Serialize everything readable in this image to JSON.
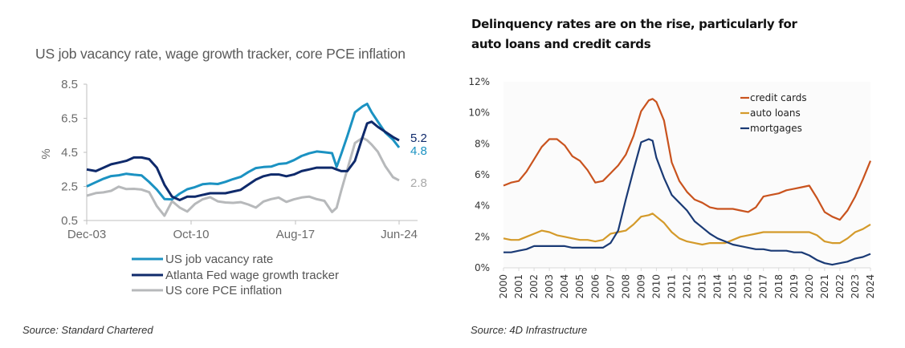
{
  "chart_data": [
    {
      "type": "line",
      "title": "US job vacancy rate, wage growth tracker, core PCE inflation",
      "xlabel": "",
      "ylabel": "%",
      "ylim": [
        0.5,
        8.5
      ],
      "yticks": [
        "8.5",
        "6.5",
        "4.5",
        "2.5",
        "0.5"
      ],
      "xticks": [
        "Dec-03",
        "Oct-10",
        "Aug-17",
        "Jun-24"
      ],
      "x": [
        2003.9,
        2004.5,
        2005.0,
        2005.5,
        2006.0,
        2006.5,
        2007.0,
        2007.5,
        2008.0,
        2008.5,
        2009.0,
        2009.5,
        2010.0,
        2010.5,
        2011.0,
        2011.5,
        2012.0,
        2012.5,
        2013.0,
        2013.5,
        2014.0,
        2014.5,
        2015.0,
        2015.5,
        2016.0,
        2016.5,
        2017.0,
        2017.5,
        2018.0,
        2018.5,
        2019.0,
        2019.5,
        2020.0,
        2020.3,
        2020.6,
        2021.0,
        2021.5,
        2022.0,
        2022.3,
        2022.6,
        2023.0,
        2023.5,
        2024.0,
        2024.4
      ],
      "series": [
        {
          "name": "US job vacancy rate",
          "color": "#1b92c2",
          "end_label": "4.8",
          "values": [
            2.5,
            2.7,
            2.9,
            3.1,
            3.2,
            3.3,
            3.2,
            3.1,
            2.7,
            2.3,
            1.8,
            1.8,
            2.1,
            2.3,
            2.4,
            2.6,
            2.7,
            2.7,
            2.8,
            2.9,
            3.0,
            3.3,
            3.6,
            3.7,
            3.7,
            3.8,
            3.8,
            4.0,
            4.3,
            4.5,
            4.6,
            4.5,
            4.4,
            3.6,
            4.4,
            5.5,
            6.9,
            7.2,
            7.3,
            6.8,
            6.3,
            5.7,
            5.3,
            4.8
          ]
        },
        {
          "name": "Atlanta Fed wage growth tracker",
          "color": "#0f2a6b",
          "end_label": "5.2",
          "values": [
            3.5,
            3.4,
            3.6,
            3.8,
            3.9,
            4.0,
            4.2,
            4.2,
            4.1,
            3.6,
            2.6,
            1.9,
            1.7,
            1.9,
            1.9,
            2.0,
            2.1,
            2.1,
            2.1,
            2.2,
            2.3,
            2.6,
            2.9,
            3.1,
            3.2,
            3.2,
            3.1,
            3.2,
            3.4,
            3.5,
            3.6,
            3.6,
            3.6,
            3.5,
            3.4,
            3.4,
            4.0,
            5.4,
            6.2,
            6.3,
            6.0,
            5.7,
            5.4,
            5.2
          ]
        },
        {
          "name": "US core PCE inflation",
          "color": "#b7b9bb",
          "end_label": "2.8",
          "values": [
            1.9,
            2.1,
            2.2,
            2.3,
            2.5,
            2.3,
            2.3,
            2.3,
            2.2,
            1.4,
            0.8,
            1.6,
            1.2,
            1.0,
            1.5,
            1.8,
            1.9,
            1.6,
            1.5,
            1.5,
            1.6,
            1.5,
            1.3,
            1.6,
            1.7,
            1.8,
            1.6,
            1.8,
            1.9,
            1.9,
            1.7,
            1.6,
            1.0,
            1.3,
            2.3,
            3.5,
            5.0,
            5.3,
            5.2,
            5.0,
            4.6,
            3.7,
            3.0,
            2.8
          ]
        }
      ],
      "legend": "bottom",
      "source": "Source: Standard Chartered"
    },
    {
      "type": "line",
      "title": "Delinquency rates are on the rise, particularly for auto loans and credit cards",
      "xlabel": "",
      "ylabel": "",
      "ylim": [
        0,
        12
      ],
      "yticks": [
        "0%",
        "2%",
        "4%",
        "6%",
        "8%",
        "10%",
        "12%"
      ],
      "categories": [
        "2000",
        "2001",
        "2002",
        "2003",
        "2004",
        "2005",
        "2006",
        "2007",
        "2008",
        "2009",
        "2010",
        "2011",
        "2012",
        "2013",
        "2014",
        "2015",
        "2016",
        "2017",
        "2018",
        "2019",
        "2020",
        "2021",
        "2022",
        "2023",
        "2024"
      ],
      "x": [
        2000.0,
        2000.5,
        2001.0,
        2001.5,
        2002.0,
        2002.5,
        2003.0,
        2003.5,
        2004.0,
        2004.5,
        2005.0,
        2005.5,
        2006.0,
        2006.5,
        2007.0,
        2007.5,
        2008.0,
        2008.5,
        2009.0,
        2009.5,
        2009.75,
        2010.0,
        2010.5,
        2011.0,
        2011.5,
        2012.0,
        2012.5,
        2013.0,
        2013.5,
        2014.0,
        2014.5,
        2015.0,
        2015.5,
        2016.0,
        2016.5,
        2017.0,
        2017.5,
        2018.0,
        2018.5,
        2019.0,
        2019.5,
        2020.0,
        2020.5,
        2021.0,
        2021.5,
        2022.0,
        2022.5,
        2023.0,
        2023.5,
        2024.0
      ],
      "series": [
        {
          "name": "credit cards",
          "color": "#c9531e",
          "values": [
            5.3,
            5.5,
            5.6,
            6.2,
            7.0,
            7.8,
            8.3,
            8.3,
            7.9,
            7.2,
            6.9,
            6.3,
            5.5,
            5.6,
            6.1,
            6.6,
            7.3,
            8.5,
            10.1,
            10.8,
            10.9,
            10.7,
            9.5,
            6.8,
            5.6,
            4.9,
            4.4,
            4.2,
            3.9,
            3.8,
            3.8,
            3.8,
            3.7,
            3.6,
            3.9,
            4.6,
            4.7,
            4.8,
            5.0,
            5.1,
            5.2,
            5.3,
            4.5,
            3.6,
            3.3,
            3.1,
            3.7,
            4.6,
            5.7,
            6.9
          ]
        },
        {
          "name": "auto loans",
          "color": "#d49a2a",
          "values": [
            1.9,
            1.8,
            1.8,
            2.0,
            2.2,
            2.4,
            2.3,
            2.1,
            2.0,
            1.9,
            1.8,
            1.8,
            1.7,
            1.8,
            2.2,
            2.3,
            2.4,
            2.8,
            3.3,
            3.4,
            3.5,
            3.3,
            2.9,
            2.3,
            1.9,
            1.7,
            1.6,
            1.5,
            1.6,
            1.6,
            1.6,
            1.8,
            2.0,
            2.1,
            2.2,
            2.3,
            2.3,
            2.3,
            2.3,
            2.3,
            2.3,
            2.3,
            2.1,
            1.7,
            1.6,
            1.6,
            1.9,
            2.3,
            2.5,
            2.8
          ]
        },
        {
          "name": "mortgages",
          "color": "#1a3a75",
          "values": [
            1.0,
            1.0,
            1.1,
            1.2,
            1.4,
            1.4,
            1.4,
            1.4,
            1.4,
            1.3,
            1.3,
            1.3,
            1.3,
            1.3,
            1.6,
            2.4,
            4.4,
            6.3,
            8.1,
            8.3,
            8.2,
            7.1,
            5.8,
            4.7,
            4.2,
            3.7,
            3.0,
            2.6,
            2.2,
            1.9,
            1.7,
            1.5,
            1.4,
            1.3,
            1.2,
            1.2,
            1.1,
            1.1,
            1.1,
            1.0,
            1.0,
            0.8,
            0.5,
            0.3,
            0.2,
            0.3,
            0.4,
            0.6,
            0.7,
            0.9
          ]
        }
      ],
      "legend": "top-right",
      "source": "Source: 4D Infrastructure"
    }
  ]
}
